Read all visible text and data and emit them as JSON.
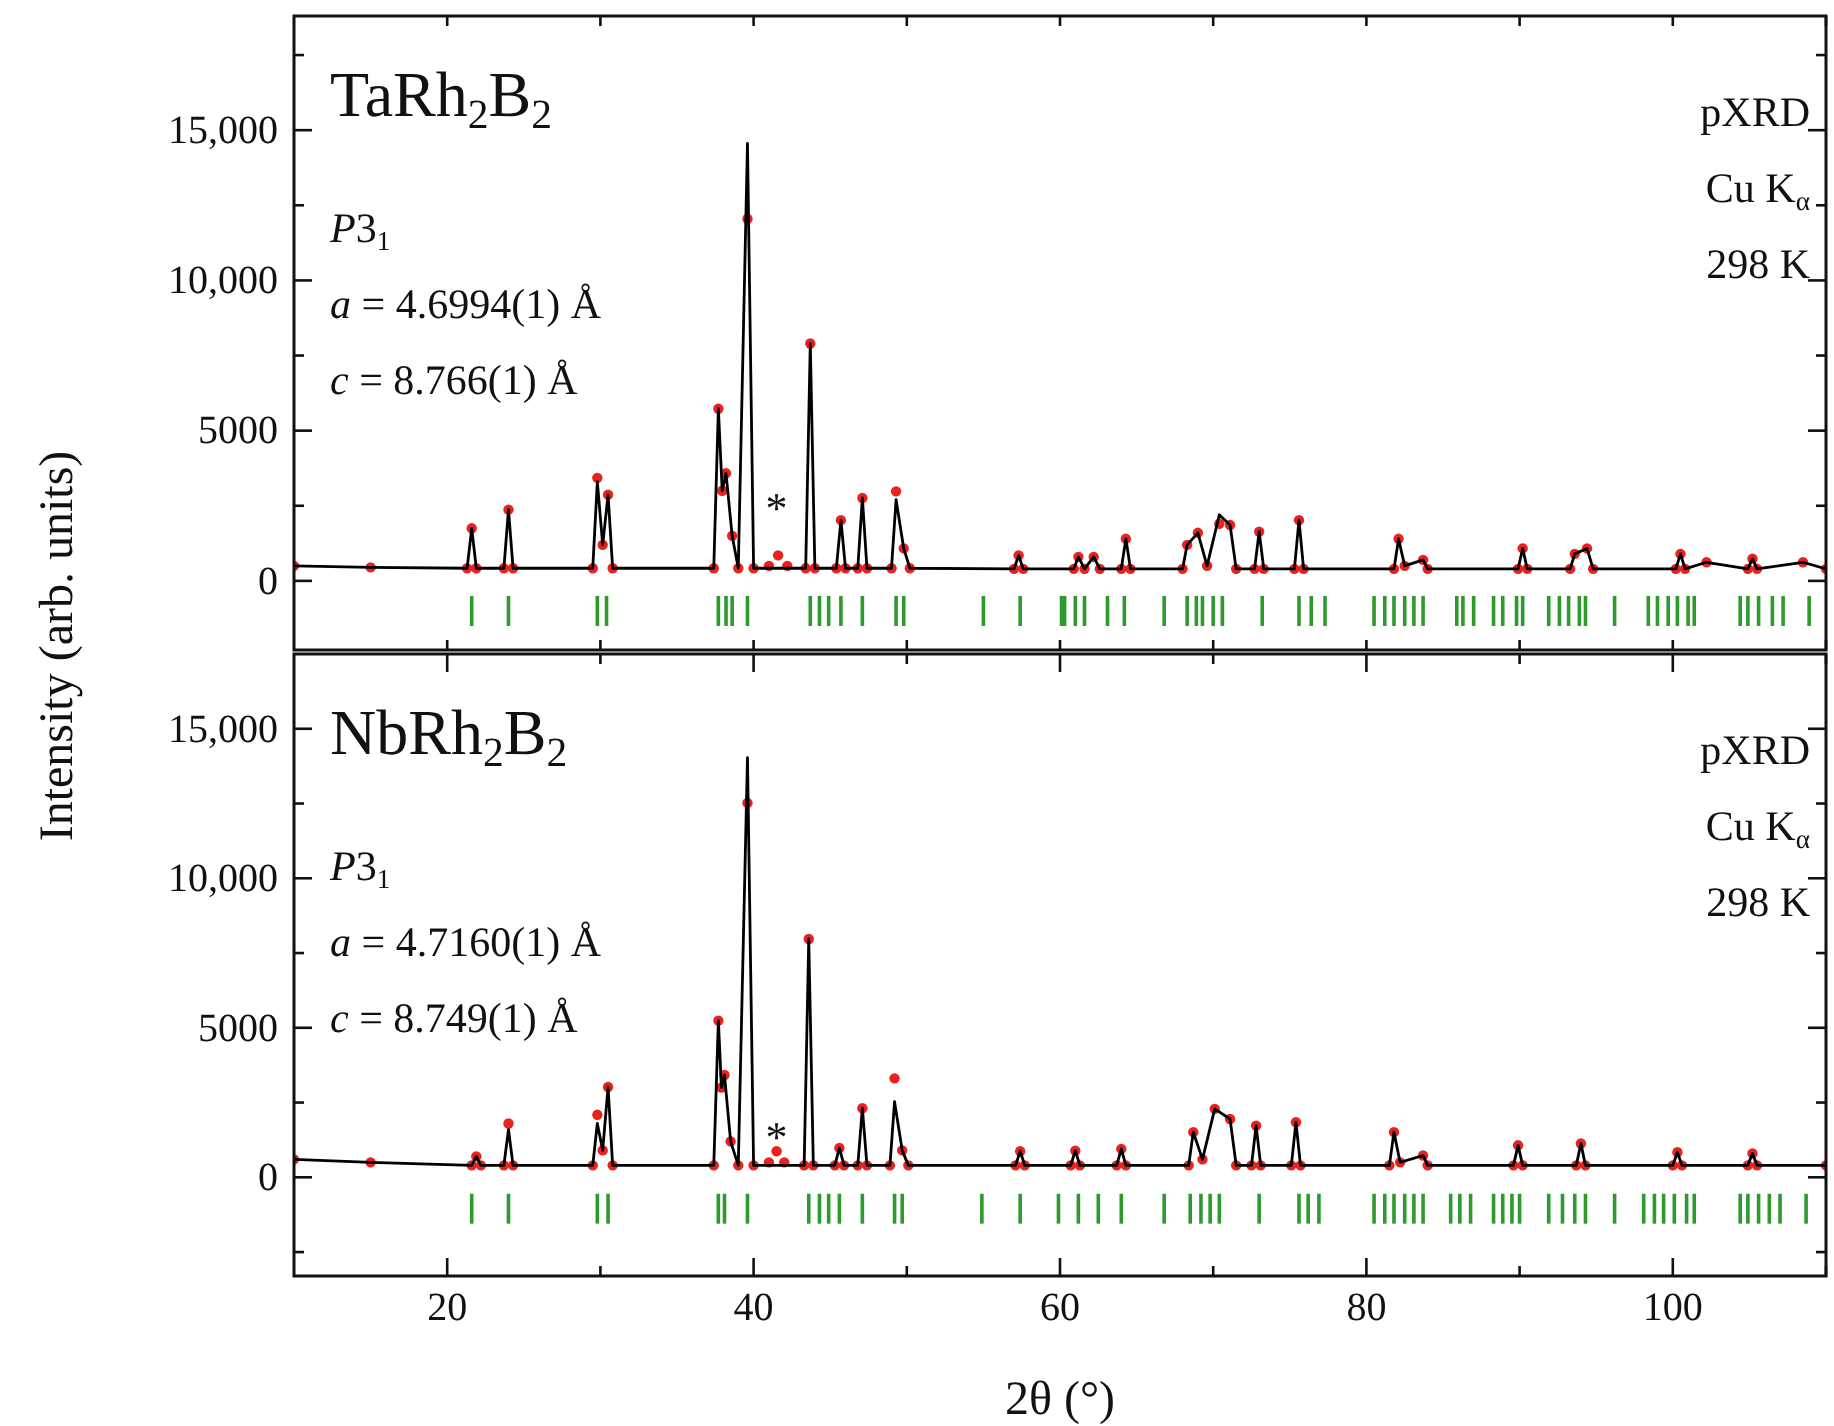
{
  "chart_data": [
    {
      "type": "line",
      "ylabel": "Intensity (arb. units)",
      "xlim": [
        10,
        110
      ],
      "ylim": [
        -2300,
        18800
      ],
      "xticks": [
        {
          "value": 20,
          "label": null
        },
        {
          "value": 30,
          "label": null
        },
        {
          "value": 40,
          "label": null
        },
        {
          "value": 50,
          "label": null
        },
        {
          "value": 60,
          "label": null
        },
        {
          "value": 70,
          "label": null
        },
        {
          "value": 80,
          "label": null
        },
        {
          "value": 90,
          "label": null
        },
        {
          "value": 100,
          "label": null
        },
        {
          "value": 110,
          "label": null
        }
      ],
      "yticks": [
        {
          "value": 0,
          "label": "0"
        },
        {
          "value": 2500,
          "label": null
        },
        5000,
        {
          "value": 7500,
          "label": null
        },
        {
          "value": 10000,
          "label": "10,000"
        },
        {
          "value": 12500,
          "label": null
        },
        {
          "value": 15000,
          "label": "15,000"
        },
        {
          "value": 17500,
          "label": null
        }
      ],
      "tick_labels": "y",
      "annotations": [
        "TaRh$_{2}$B$_{2}$",
        "P3$_{1}$",
        "a = 4.6994(1)  Å",
        "c = 8.766(1)  Å",
        "pXRD",
        "Cu K$_{α}$",
        "298 K",
        "*"
      ],
      "x": [
        10,
        15,
        21.3,
        21.6,
        21.9,
        23.7,
        24.0,
        24.3,
        29.5,
        29.8,
        30.15,
        30.5,
        30.8,
        37.4,
        37.7,
        37.95,
        38.2,
        38.6,
        39.0,
        39.6,
        40.0,
        41.0,
        41.6,
        42.2,
        43.4,
        43.7,
        44.0,
        45.4,
        45.7,
        46.0,
        46.8,
        47.1,
        47.4,
        49.0,
        49.3,
        49.8,
        50.2,
        57.0,
        57.3,
        57.6,
        60.9,
        61.2,
        61.6,
        62.2,
        62.6,
        64.0,
        64.3,
        64.6,
        68.0,
        68.3,
        69.0,
        69.6,
        70.4,
        71.1,
        71.5,
        72.7,
        73.0,
        73.3,
        75.3,
        75.6,
        75.9,
        81.8,
        82.1,
        82.5,
        83.7,
        84.0,
        89.9,
        90.2,
        90.5,
        93.3,
        93.6,
        94.4,
        94.8,
        100.2,
        100.5,
        100.8,
        102.2,
        104.9,
        105.2,
        105.5,
        108.5,
        110
      ],
      "series": [
        {
          "type": "scatter",
          "color": "#e8231f",
          "marker": "circle",
          "values": [
            500,
            450,
            420,
            1750,
            420,
            420,
            2370,
            420,
            420,
            3430,
            1200,
            2870,
            420,
            420,
            5730,
            3000,
            3580,
            1500,
            420,
            12050,
            420,
            500,
            850,
            500,
            420,
            7900,
            420,
            420,
            2020,
            420,
            420,
            2760,
            420,
            420,
            2980,
            1080,
            420,
            400,
            850,
            400,
            400,
            800,
            400,
            800,
            400,
            400,
            1400,
            400,
            400,
            1200,
            1600,
            500,
            1900,
            1860,
            400,
            400,
            1640,
            400,
            400,
            2020,
            400,
            400,
            1400,
            500,
            700,
            400,
            400,
            1080,
            400,
            400,
            900,
            1080,
            400,
            400,
            900,
            400,
            620,
            400,
            740,
            400,
            620,
            400
          ]
        },
        {
          "color": "#000000",
          "values": [
            500,
            450,
            420,
            1750,
            420,
            420,
            2370,
            420,
            420,
            3300,
            1200,
            2870,
            420,
            420,
            5730,
            3000,
            3580,
            1500,
            420,
            14560,
            420,
            420,
            420,
            420,
            420,
            7900,
            420,
            420,
            2020,
            420,
            420,
            2760,
            420,
            420,
            2700,
            1080,
            420,
            400,
            850,
            400,
            400,
            800,
            400,
            800,
            400,
            400,
            1400,
            400,
            400,
            1200,
            1600,
            500,
            2200,
            1860,
            400,
            400,
            1640,
            400,
            400,
            2020,
            400,
            400,
            1400,
            500,
            700,
            400,
            400,
            1080,
            400,
            400,
            900,
            1080,
            400,
            400,
            900,
            400,
            620,
            400,
            740,
            400,
            620,
            400
          ]
        },
        {
          "type": "bar",
          "color": "#2e9a2e",
          "x": [
            21.6,
            24.0,
            29.8,
            30.4,
            37.7,
            38.2,
            38.6,
            39.6,
            43.7,
            44.3,
            44.9,
            45.7,
            47.1,
            49.3,
            49.8,
            55.0,
            57.4,
            60.1,
            60.3,
            61.0,
            61.6,
            63.1,
            64.2,
            66.8,
            68.3,
            68.9,
            69.3,
            70.0,
            70.6,
            73.2,
            75.6,
            76.4,
            77.3,
            80.5,
            81.2,
            81.8,
            82.5,
            83.1,
            83.7,
            85.9,
            86.3,
            87.0,
            88.3,
            88.9,
            89.8,
            90.2,
            91.9,
            92.6,
            93.2,
            93.9,
            94.3,
            96.2,
            98.4,
            99.0,
            99.7,
            100.3,
            101.0,
            101.4,
            104.4,
            104.9,
            105.6,
            106.5,
            107.2,
            108.9
          ],
          "base": [
            -1500,
            -1500,
            -1500,
            -1500,
            -1500,
            -1500,
            -1500,
            -1500,
            -1500,
            -1500,
            -1500,
            -1500,
            -1500,
            -1500,
            -1500,
            -1500,
            -1500,
            -1500,
            -1500,
            -1500,
            -1500,
            -1500,
            -1500,
            -1500,
            -1500,
            -1500,
            -1500,
            -1500,
            -1500,
            -1500,
            -1500,
            -1500,
            -1500,
            -1500,
            -1500,
            -1500,
            -1500,
            -1500,
            -1500,
            -1500,
            -1500,
            -1500,
            -1500,
            -1500,
            -1500,
            -1500,
            -1500,
            -1500,
            -1500,
            -1500,
            -1500,
            -1500,
            -1500,
            -1500,
            -1500,
            -1500,
            -1500,
            -1500,
            -1500,
            -1500,
            -1500,
            -1500,
            -1500,
            -1500
          ],
          "values": [
            1000,
            1000,
            1000,
            1000,
            1000,
            1000,
            1000,
            1000,
            1000,
            1000,
            1000,
            1000,
            1000,
            1000,
            1000,
            1000,
            1000,
            1000,
            1000,
            1000,
            1000,
            1000,
            1000,
            1000,
            1000,
            1000,
            1000,
            1000,
            1000,
            1000,
            1000,
            1000,
            1000,
            1000,
            1000,
            1000,
            1000,
            1000,
            1000,
            1000,
            1000,
            1000,
            1000,
            1000,
            1000,
            1000,
            1000,
            1000,
            1000,
            1000,
            1000,
            1000,
            1000,
            1000,
            1000,
            1000,
            1000,
            1000,
            1000,
            1000,
            1000,
            1000,
            1000,
            1000
          ]
        }
      ]
    },
    {
      "type": "line",
      "xlabel": "2θ (°)",
      "xlim": [
        10,
        110
      ],
      "ylim": [
        -3300,
        17500
      ],
      "xticks": [
        20,
        {
          "value": 30,
          "label": null
        },
        40,
        {
          "value": 50,
          "label": null
        },
        60,
        {
          "value": 70,
          "label": null
        },
        80,
        {
          "value": 90,
          "label": null
        },
        100,
        {
          "value": 110,
          "label": null
        }
      ],
      "yticks": [
        {
          "value": -2500,
          "label": null
        },
        {
          "value": 0,
          "label": "0"
        },
        {
          "value": 2500,
          "label": null
        },
        5000,
        {
          "value": 7500,
          "label": null
        },
        {
          "value": 10000,
          "label": "10,000"
        },
        {
          "value": 12500,
          "label": null
        },
        {
          "value": 15000,
          "label": "15,000"
        }
      ],
      "annotations": [
        "NbRh$_{2}$B$_{2}$",
        "P3$_{1}$",
        "a = 4.7160(1)  Å",
        "c = 8.749(1)  Å",
        "pXRD",
        "Cu K$_{α}$",
        "298 K",
        "*"
      ],
      "x": [
        10,
        15,
        21.6,
        21.9,
        22.2,
        23.7,
        24.0,
        24.3,
        29.5,
        29.8,
        30.15,
        30.5,
        30.8,
        37.4,
        37.7,
        37.9,
        38.1,
        38.5,
        39.0,
        39.6,
        40.0,
        41.0,
        41.5,
        42.0,
        43.3,
        43.6,
        43.9,
        45.3,
        45.6,
        45.9,
        46.8,
        47.1,
        47.4,
        48.9,
        49.2,
        49.7,
        50.1,
        57.1,
        57.4,
        57.7,
        60.7,
        61.0,
        61.3,
        63.7,
        64.0,
        64.3,
        68.4,
        68.7,
        69.3,
        70.1,
        71.1,
        71.5,
        72.5,
        72.8,
        73.1,
        75.1,
        75.4,
        75.7,
        81.5,
        81.8,
        82.2,
        83.7,
        84.0,
        89.6,
        89.9,
        90.2,
        93.7,
        94.0,
        94.3,
        100.0,
        100.3,
        100.6,
        104.9,
        105.2,
        105.5,
        110
      ],
      "series": [
        {
          "type": "scatter",
          "color": "#e8231f",
          "marker": "circle",
          "values": [
            600,
            500,
            400,
            700,
            400,
            400,
            1800,
            400,
            400,
            2090,
            900,
            3020,
            400,
            400,
            5240,
            3000,
            3420,
            1200,
            400,
            12520,
            400,
            500,
            870,
            500,
            400,
            7970,
            400,
            400,
            980,
            400,
            400,
            2310,
            400,
            400,
            3310,
            900,
            400,
            400,
            870,
            400,
            400,
            890,
            400,
            400,
            950,
            400,
            400,
            1510,
            600,
            2290,
            1950,
            400,
            400,
            1730,
            400,
            400,
            1840,
            400,
            400,
            1510,
            500,
            730,
            400,
            400,
            1070,
            400,
            400,
            1130,
            400,
            400,
            840,
            400,
            400,
            800,
            400,
            400
          ]
        },
        {
          "color": "#000000",
          "values": [
            600,
            500,
            400,
            700,
            400,
            400,
            1600,
            400,
            400,
            1800,
            900,
            3020,
            400,
            400,
            5240,
            3000,
            3420,
            1200,
            400,
            14030,
            400,
            400,
            400,
            400,
            400,
            7970,
            400,
            400,
            980,
            400,
            400,
            2310,
            400,
            400,
            2530,
            900,
            400,
            400,
            870,
            400,
            400,
            890,
            400,
            400,
            950,
            400,
            400,
            1510,
            600,
            2290,
            1950,
            400,
            400,
            1730,
            400,
            400,
            1840,
            400,
            400,
            1510,
            500,
            730,
            400,
            400,
            1070,
            400,
            400,
            1130,
            400,
            400,
            840,
            400,
            400,
            800,
            400,
            400
          ]
        },
        {
          "type": "bar",
          "color": "#2e9a2e",
          "x": [
            21.6,
            24.0,
            29.8,
            30.5,
            37.7,
            38.1,
            39.6,
            43.6,
            44.3,
            44.9,
            45.6,
            47.1,
            49.2,
            49.7,
            54.9,
            57.4,
            59.9,
            61.2,
            62.5,
            64.0,
            66.8,
            68.5,
            69.2,
            69.8,
            70.4,
            73.0,
            75.6,
            76.2,
            76.9,
            80.5,
            81.2,
            81.8,
            82.5,
            83.1,
            83.7,
            85.5,
            86.1,
            86.8,
            88.3,
            88.9,
            89.5,
            90.0,
            91.9,
            92.8,
            93.6,
            94.3,
            96.2,
            98.1,
            98.8,
            99.4,
            100.1,
            100.9,
            101.4,
            104.4,
            104.9,
            105.6,
            106.3,
            107.0,
            108.7
          ],
          "base": [
            -1550,
            -1550,
            -1550,
            -1550,
            -1550,
            -1550,
            -1550,
            -1550,
            -1550,
            -1550,
            -1550,
            -1550,
            -1550,
            -1550,
            -1550,
            -1550,
            -1550,
            -1550,
            -1550,
            -1550,
            -1550,
            -1550,
            -1550,
            -1550,
            -1550,
            -1550,
            -1550,
            -1550,
            -1550,
            -1550,
            -1550,
            -1550,
            -1550,
            -1550,
            -1550,
            -1550,
            -1550,
            -1550,
            -1550,
            -1550,
            -1550,
            -1550,
            -1550,
            -1550,
            -1550,
            -1550,
            -1550,
            -1550,
            -1550,
            -1550,
            -1550,
            -1550,
            -1550,
            -1550,
            -1550,
            -1550,
            -1550,
            -1550,
            -1550
          ],
          "values": [
            1000,
            1000,
            1000,
            1000,
            1000,
            1000,
            1000,
            1000,
            1000,
            1000,
            1000,
            1000,
            1000,
            1000,
            1000,
            1000,
            1000,
            1000,
            1000,
            1000,
            1000,
            1000,
            1000,
            1000,
            1000,
            1000,
            1000,
            1000,
            1000,
            1000,
            1000,
            1000,
            1000,
            1000,
            1000,
            1000,
            1000,
            1000,
            1000,
            1000,
            1000,
            1000,
            1000,
            1000,
            1000,
            1000,
            1000,
            1000,
            1000,
            1000,
            1000,
            1000,
            1000,
            1000,
            1000,
            1000,
            1000,
            1000,
            1000
          ]
        }
      ]
    }
  ]
}
